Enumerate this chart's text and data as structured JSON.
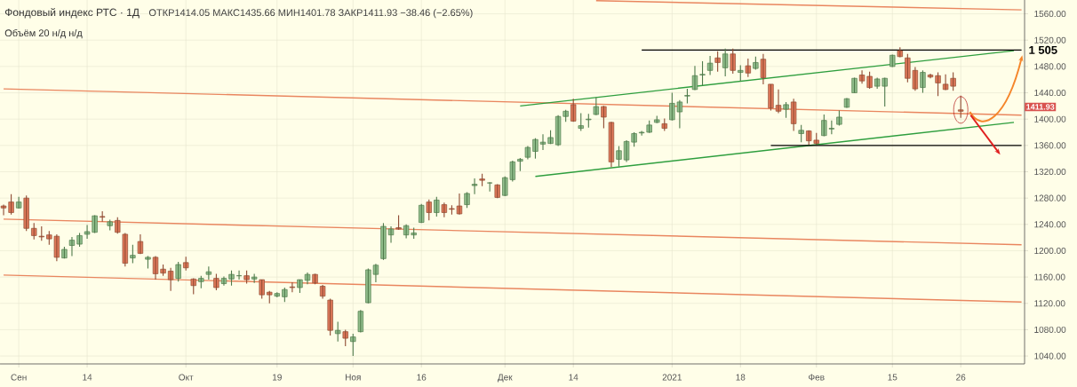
{
  "chart_data": {
    "type": "candlestick",
    "title": "Фондовый индекс РТС · 1Д",
    "subtitle": "Объём 20 н/д н/д",
    "annotations": [
      "ОТКР1414.05 МАКС1435.66 МИН1401.78 ЗАКР1411.93 −38.46 (−2.65%)",
      "1 505",
      "1411.93"
    ],
    "categories": [
      null,
      null,
      "Сен",
      null,
      null,
      null,
      null,
      null,
      null,
      null,
      null,
      "14",
      null,
      null,
      null,
      null,
      null,
      null,
      null,
      null,
      null,
      null,
      null,
      null,
      "Окт",
      null,
      null,
      null,
      null,
      null,
      null,
      null,
      null,
      null,
      null,
      null,
      "19",
      null,
      null,
      null,
      null,
      null,
      null,
      null,
      null,
      null,
      "Ноя",
      null,
      null,
      null,
      null,
      null,
      null,
      null,
      null,
      "16",
      null,
      null,
      null,
      null,
      null,
      null,
      null,
      null,
      null,
      null,
      "Дек",
      null,
      null,
      null,
      null,
      null,
      null,
      null,
      null,
      "14",
      null,
      null,
      null,
      null,
      null,
      null,
      null,
      null,
      null,
      null,
      null,
      null,
      "2021",
      null,
      null,
      null,
      null,
      null,
      null,
      null,
      null,
      "18",
      null,
      null,
      null,
      null,
      null,
      null,
      null,
      null,
      null,
      "Фев",
      null,
      null,
      null,
      null,
      null,
      null,
      null,
      null,
      null,
      "15",
      null,
      null,
      null,
      null,
      null,
      null,
      null,
      null,
      "26",
      null,
      null,
      null,
      null,
      null,
      null,
      null,
      null
    ],
    "ohlc": [
      [
        1268,
        1270,
        1254,
        1265
      ],
      [
        1274,
        1286,
        1255,
        1258
      ],
      [
        1265,
        1282,
        1264,
        1274
      ],
      [
        1280,
        1284,
        1230,
        1234
      ],
      [
        1234,
        1242,
        1217,
        1223
      ],
      [
        1222,
        1237,
        1215,
        1221
      ],
      [
        1224,
        1230,
        1209,
        1218
      ],
      [
        1222,
        1225,
        1184,
        1190
      ],
      [
        1189,
        1206,
        1188,
        1202
      ],
      [
        1208,
        1221,
        1192,
        1216
      ],
      [
        1210,
        1227,
        1206,
        1223
      ],
      [
        1225,
        1239,
        1218,
        1229
      ],
      [
        1228,
        1254,
        1227,
        1253
      ],
      [
        1252,
        1260,
        1244,
        1251
      ],
      [
        1238,
        1247,
        1231,
        1244
      ],
      [
        1246,
        1251,
        1226,
        1228
      ],
      [
        1225,
        1227,
        1176,
        1181
      ],
      [
        1189,
        1209,
        1181,
        1193
      ],
      [
        1214,
        1225,
        1195,
        1196
      ],
      [
        1187,
        1192,
        1173,
        1190
      ],
      [
        1190,
        1192,
        1156,
        1165
      ],
      [
        1172,
        1179,
        1162,
        1166
      ],
      [
        1169,
        1174,
        1139,
        1156
      ],
      [
        1158,
        1183,
        1153,
        1179
      ],
      [
        1182,
        1191,
        1170,
        1174
      ],
      [
        1157,
        1158,
        1134,
        1147
      ],
      [
        1153,
        1162,
        1143,
        1158
      ],
      [
        1164,
        1176,
        1156,
        1168
      ],
      [
        1158,
        1165,
        1140,
        1144
      ],
      [
        1150,
        1161,
        1147,
        1158
      ],
      [
        1157,
        1170,
        1147,
        1164
      ],
      [
        1162,
        1170,
        1156,
        1162
      ],
      [
        1162,
        1170,
        1150,
        1156
      ],
      [
        1157,
        1165,
        1151,
        1160
      ],
      [
        1156,
        1156,
        1127,
        1133
      ],
      [
        1137,
        1139,
        1120,
        1133
      ],
      [
        1131,
        1137,
        1129,
        1135
      ],
      [
        1130,
        1144,
        1122,
        1141
      ],
      [
        1145,
        1152,
        1137,
        1144
      ],
      [
        1144,
        1156,
        1136,
        1156
      ],
      [
        1155,
        1167,
        1149,
        1164
      ],
      [
        1164,
        1165,
        1149,
        1151
      ],
      [
        1146,
        1148,
        1127,
        1131
      ],
      [
        1125,
        1127,
        1071,
        1079
      ],
      [
        1074,
        1092,
        1062,
        1079
      ],
      [
        1077,
        1080,
        1055,
        1067
      ],
      [
        1062,
        1074,
        1040,
        1069
      ],
      [
        1077,
        1110,
        1076,
        1108
      ],
      [
        1121,
        1173,
        1120,
        1171
      ],
      [
        1164,
        1180,
        1152,
        1178
      ],
      [
        1188,
        1242,
        1186,
        1237
      ],
      [
        1224,
        1237,
        1212,
        1233
      ],
      [
        1235,
        1254,
        1232,
        1233
      ],
      [
        1224,
        1240,
        1219,
        1238
      ],
      [
        1224,
        1235,
        1218,
        1227
      ],
      [
        1243,
        1271,
        1242,
        1269
      ],
      [
        1274,
        1278,
        1246,
        1258
      ],
      [
        1258,
        1282,
        1252,
        1277
      ],
      [
        1270,
        1273,
        1251,
        1258
      ],
      [
        1264,
        1269,
        1255,
        1263
      ],
      [
        1268,
        1287,
        1255,
        1256
      ],
      [
        1270,
        1289,
        1265,
        1287
      ],
      [
        1299,
        1310,
        1286,
        1301
      ],
      [
        1309,
        1317,
        1298,
        1307
      ],
      [
        1303,
        1304,
        1290,
        1303
      ],
      [
        1300,
        1301,
        1280,
        1281
      ],
      [
        1284,
        1313,
        1283,
        1311
      ],
      [
        1308,
        1337,
        1305,
        1335
      ],
      [
        1336,
        1341,
        1321,
        1339
      ],
      [
        1342,
        1359,
        1339,
        1357
      ],
      [
        1351,
        1371,
        1340,
        1369
      ],
      [
        1362,
        1377,
        1353,
        1365
      ],
      [
        1363,
        1383,
        1362,
        1372
      ],
      [
        1361,
        1406,
        1359,
        1404
      ],
      [
        1404,
        1414,
        1396,
        1412
      ],
      [
        1422,
        1431,
        1396,
        1397
      ],
      [
        1386,
        1409,
        1382,
        1390
      ],
      [
        1399,
        1408,
        1387,
        1400
      ],
      [
        1407,
        1433,
        1406,
        1419
      ],
      [
        1419,
        1420,
        1386,
        1403
      ],
      [
        1395,
        1396,
        1327,
        1335
      ],
      [
        1339,
        1359,
        1328,
        1352
      ],
      [
        1338,
        1368,
        1335,
        1366
      ],
      [
        1365,
        1380,
        1358,
        1378
      ],
      [
        1379,
        1382,
        1375,
        1380
      ],
      [
        1380,
        1398,
        1379,
        1391
      ],
      [
        1395,
        1405,
        1394,
        1399
      ],
      [
        1393,
        1401,
        1382,
        1386
      ],
      [
        1399,
        1440,
        1398,
        1424
      ],
      [
        1411,
        1429,
        1386,
        1426
      ],
      [
        1435,
        1446,
        1424,
        1436
      ],
      [
        1445,
        1481,
        1444,
        1466
      ],
      [
        1467,
        1488,
        1451,
        1468
      ],
      [
        1474,
        1496,
        1467,
        1485
      ],
      [
        1493,
        1503,
        1472,
        1486
      ],
      [
        1478,
        1507,
        1465,
        1499
      ],
      [
        1499,
        1507,
        1469,
        1474
      ],
      [
        1471,
        1482,
        1458,
        1474
      ],
      [
        1481,
        1492,
        1464,
        1470
      ],
      [
        1477,
        1495,
        1475,
        1486
      ],
      [
        1491,
        1499,
        1453,
        1463
      ],
      [
        1453,
        1453,
        1413,
        1417
      ],
      [
        1421,
        1445,
        1409,
        1412
      ],
      [
        1415,
        1426,
        1402,
        1422
      ],
      [
        1426,
        1431,
        1382,
        1393
      ],
      [
        1378,
        1391,
        1365,
        1383
      ],
      [
        1382,
        1383,
        1361,
        1367
      ],
      [
        1368,
        1379,
        1361,
        1363
      ],
      [
        1375,
        1407,
        1374,
        1398
      ],
      [
        1385,
        1398,
        1377,
        1386
      ],
      [
        1392,
        1413,
        1390,
        1403
      ],
      [
        1418,
        1432,
        1417,
        1431
      ],
      [
        1440,
        1463,
        1440,
        1462
      ],
      [
        1467,
        1474,
        1454,
        1458
      ],
      [
        1465,
        1472,
        1446,
        1448
      ],
      [
        1450,
        1463,
        1446,
        1461
      ],
      [
        1450,
        1463,
        1419,
        1462
      ],
      [
        1480,
        1498,
        1479,
        1497
      ],
      [
        1504,
        1509,
        1494,
        1495
      ],
      [
        1493,
        1499,
        1456,
        1462
      ],
      [
        1474,
        1479,
        1443,
        1446
      ],
      [
        1448,
        1474,
        1440,
        1471
      ],
      [
        1467,
        1469,
        1462,
        1464
      ],
      [
        1466,
        1471,
        1435,
        1455
      ],
      [
        1453,
        1468,
        1444,
        1445
      ],
      [
        1462,
        1471,
        1443,
        1450
      ],
      [
        1414.05,
        1435.66,
        1401.78,
        1411.93
      ],
      null,
      null,
      null,
      null,
      null,
      null,
      null,
      null
    ],
    "series": [
      {
        "type": "line",
        "color": "#E9865F",
        "values": [
          null,
          null,
          null,
          null,
          null,
          null,
          null,
          null,
          null,
          null,
          null,
          null,
          null,
          null,
          null,
          null,
          null,
          null,
          null,
          null,
          null,
          null,
          null,
          null,
          null,
          null,
          null,
          null,
          null,
          null,
          null,
          null,
          null,
          null,
          null,
          null,
          null,
          null,
          null,
          null,
          null,
          null,
          null,
          null,
          null,
          null,
          null,
          null,
          null,
          null,
          null,
          null,
          null,
          null,
          null,
          null,
          null,
          null,
          null,
          null,
          null,
          null,
          null,
          null,
          null,
          null,
          null,
          null,
          null,
          null,
          null,
          null,
          null,
          null,
          null,
          null,
          null,
          null,
          1580,
          null,
          null,
          null,
          null,
          null,
          null,
          null,
          null,
          null,
          null,
          null,
          null,
          null,
          null,
          null,
          null,
          null,
          null,
          null,
          null,
          null,
          null,
          null,
          null,
          null,
          null,
          null,
          null,
          null,
          null,
          null,
          null,
          null,
          null,
          null,
          null,
          null,
          null,
          null,
          null,
          null,
          null,
          null,
          null,
          null,
          null,
          null,
          null,
          null,
          null,
          null,
          null,
          null,
          null,
          null,
          1566
        ]
      },
      {
        "type": "line",
        "color": "#E9865F",
        "values": [
          1446,
          null,
          null,
          null,
          null,
          null,
          null,
          null,
          null,
          null,
          null,
          null,
          null,
          null,
          null,
          null,
          null,
          null,
          null,
          null,
          null,
          null,
          null,
          null,
          null,
          null,
          null,
          null,
          null,
          null,
          null,
          null,
          null,
          null,
          null,
          null,
          null,
          null,
          null,
          null,
          null,
          null,
          null,
          null,
          null,
          null,
          null,
          null,
          null,
          null,
          null,
          null,
          null,
          null,
          null,
          null,
          null,
          null,
          null,
          null,
          null,
          null,
          null,
          null,
          null,
          null,
          null,
          null,
          null,
          null,
          null,
          null,
          null,
          null,
          null,
          null,
          null,
          null,
          null,
          null,
          null,
          null,
          null,
          null,
          null,
          null,
          null,
          null,
          null,
          null,
          null,
          null,
          null,
          null,
          null,
          null,
          null,
          null,
          null,
          null,
          null,
          null,
          null,
          null,
          null,
          null,
          null,
          null,
          null,
          null,
          null,
          null,
          null,
          null,
          null,
          null,
          null,
          null,
          null,
          null,
          null,
          null,
          null,
          null,
          null,
          null,
          null,
          null,
          null,
          null,
          null,
          null,
          null,
          null,
          1406
        ]
      },
      {
        "type": "line",
        "color": "#E9865F",
        "values": [
          1248,
          null,
          null,
          null,
          null,
          null,
          null,
          null,
          null,
          null,
          null,
          null,
          null,
          null,
          null,
          null,
          null,
          null,
          null,
          null,
          null,
          null,
          null,
          null,
          null,
          null,
          null,
          null,
          null,
          null,
          null,
          null,
          null,
          null,
          null,
          null,
          null,
          null,
          null,
          null,
          null,
          null,
          null,
          null,
          null,
          null,
          null,
          null,
          null,
          null,
          null,
          null,
          null,
          null,
          null,
          null,
          null,
          null,
          null,
          null,
          null,
          null,
          null,
          null,
          null,
          null,
          null,
          null,
          null,
          null,
          null,
          null,
          null,
          null,
          null,
          null,
          null,
          null,
          null,
          null,
          null,
          null,
          null,
          null,
          null,
          null,
          null,
          null,
          null,
          null,
          null,
          null,
          null,
          null,
          null,
          null,
          null,
          null,
          null,
          null,
          null,
          null,
          null,
          null,
          null,
          null,
          null,
          null,
          null,
          null,
          null,
          null,
          null,
          null,
          null,
          null,
          null,
          null,
          null,
          null,
          null,
          null,
          null,
          null,
          null,
          null,
          null,
          null,
          null,
          null,
          null,
          null,
          null,
          null,
          1209
        ]
      },
      {
        "type": "line",
        "color": "#E9865F",
        "values": [
          1163,
          null,
          null,
          null,
          null,
          null,
          null,
          null,
          null,
          null,
          null,
          null,
          null,
          null,
          null,
          null,
          null,
          null,
          null,
          null,
          null,
          null,
          null,
          null,
          null,
          null,
          null,
          null,
          null,
          null,
          null,
          null,
          null,
          null,
          null,
          null,
          null,
          null,
          null,
          null,
          null,
          null,
          null,
          null,
          null,
          null,
          null,
          null,
          null,
          null,
          null,
          null,
          null,
          null,
          null,
          null,
          null,
          null,
          null,
          null,
          null,
          null,
          null,
          null,
          null,
          null,
          null,
          null,
          null,
          null,
          null,
          null,
          null,
          null,
          null,
          null,
          null,
          null,
          null,
          null,
          null,
          null,
          null,
          null,
          null,
          null,
          null,
          null,
          null,
          null,
          null,
          null,
          null,
          null,
          null,
          null,
          null,
          null,
          null,
          null,
          null,
          null,
          null,
          null,
          null,
          null,
          null,
          null,
          null,
          null,
          null,
          null,
          null,
          null,
          null,
          null,
          null,
          null,
          null,
          null,
          null,
          null,
          null,
          null,
          null,
          null,
          null,
          null,
          null,
          null,
          null,
          null,
          null,
          null,
          1122
        ]
      },
      {
        "type": "line",
        "color": "#2E9E3E",
        "values": [
          null,
          null,
          null,
          null,
          null,
          null,
          null,
          null,
          null,
          null,
          null,
          null,
          null,
          null,
          null,
          null,
          null,
          null,
          null,
          null,
          null,
          null,
          null,
          null,
          null,
          null,
          null,
          null,
          null,
          null,
          null,
          null,
          null,
          null,
          null,
          null,
          null,
          null,
          null,
          null,
          null,
          null,
          null,
          null,
          null,
          null,
          null,
          null,
          null,
          null,
          null,
          null,
          null,
          null,
          null,
          null,
          null,
          null,
          null,
          null,
          null,
          null,
          null,
          null,
          null,
          null,
          null,
          null,
          1420,
          null,
          null,
          null,
          null,
          null,
          null,
          null,
          null,
          null,
          null,
          null,
          null,
          null,
          null,
          null,
          null,
          null,
          null,
          null,
          null,
          null,
          null,
          null,
          null,
          null,
          null,
          null,
          null,
          null,
          null,
          null,
          null,
          null,
          null,
          null,
          null,
          null,
          null,
          null,
          null,
          null,
          null,
          null,
          null,
          null,
          null,
          null,
          null,
          null,
          null,
          null,
          null,
          null,
          null,
          null,
          null,
          null,
          null,
          null,
          null,
          null,
          null,
          null,
          null,
          1504,
          null
        ]
      },
      {
        "type": "line",
        "color": "#2E9E3E",
        "values": [
          null,
          null,
          null,
          null,
          null,
          null,
          null,
          null,
          null,
          null,
          null,
          null,
          null,
          null,
          null,
          null,
          null,
          null,
          null,
          null,
          null,
          null,
          null,
          null,
          null,
          null,
          null,
          null,
          null,
          null,
          null,
          null,
          null,
          null,
          null,
          null,
          null,
          null,
          null,
          null,
          null,
          null,
          null,
          null,
          null,
          null,
          null,
          null,
          null,
          null,
          null,
          null,
          null,
          null,
          null,
          null,
          null,
          null,
          null,
          null,
          null,
          null,
          null,
          null,
          null,
          null,
          null,
          null,
          null,
          null,
          1313,
          null,
          null,
          null,
          null,
          null,
          null,
          null,
          null,
          null,
          null,
          null,
          null,
          null,
          null,
          null,
          null,
          null,
          null,
          null,
          null,
          null,
          null,
          null,
          null,
          null,
          null,
          null,
          null,
          null,
          null,
          null,
          null,
          null,
          null,
          null,
          null,
          null,
          null,
          null,
          null,
          null,
          null,
          null,
          null,
          null,
          null,
          null,
          null,
          null,
          null,
          null,
          null,
          null,
          null,
          null,
          null,
          null,
          null,
          null,
          null,
          null,
          null,
          1395,
          null
        ]
      },
      {
        "type": "line",
        "color": "#000000",
        "values": [
          null,
          null,
          null,
          null,
          null,
          null,
          null,
          null,
          null,
          null,
          null,
          null,
          null,
          null,
          null,
          null,
          null,
          null,
          null,
          null,
          null,
          null,
          null,
          null,
          null,
          null,
          null,
          null,
          null,
          null,
          null,
          null,
          null,
          null,
          null,
          null,
          null,
          null,
          null,
          null,
          null,
          null,
          null,
          null,
          null,
          null,
          null,
          null,
          null,
          null,
          null,
          null,
          null,
          null,
          null,
          null,
          null,
          null,
          null,
          null,
          null,
          null,
          null,
          null,
          null,
          null,
          null,
          null,
          null,
          null,
          null,
          null,
          null,
          null,
          null,
          null,
          null,
          null,
          null,
          null,
          null,
          null,
          null,
          null,
          1505,
          null,
          null,
          null,
          null,
          null,
          null,
          null,
          null,
          null,
          null,
          null,
          null,
          null,
          null,
          null,
          null,
          null,
          null,
          null,
          null,
          null,
          null,
          null,
          null,
          null,
          null,
          null,
          null,
          null,
          null,
          null,
          null,
          null,
          null,
          null,
          null,
          null,
          null,
          null,
          null,
          null,
          null,
          null,
          null,
          null,
          null,
          null,
          null,
          null,
          1505
        ]
      },
      {
        "type": "line",
        "color": "#000000",
        "values": [
          null,
          null,
          null,
          null,
          null,
          null,
          null,
          null,
          null,
          null,
          null,
          null,
          null,
          null,
          null,
          null,
          null,
          null,
          null,
          null,
          null,
          null,
          null,
          null,
          null,
          null,
          null,
          null,
          null,
          null,
          null,
          null,
          null,
          null,
          null,
          null,
          null,
          null,
          null,
          null,
          null,
          null,
          null,
          null,
          null,
          null,
          null,
          null,
          null,
          null,
          null,
          null,
          null,
          null,
          null,
          null,
          null,
          null,
          null,
          null,
          null,
          null,
          null,
          null,
          null,
          null,
          null,
          null,
          null,
          null,
          null,
          null,
          null,
          null,
          null,
          null,
          null,
          null,
          null,
          null,
          null,
          null,
          null,
          null,
          null,
          null,
          null,
          null,
          null,
          null,
          null,
          null,
          null,
          null,
          null,
          null,
          null,
          null,
          null,
          null,
          null,
          1360,
          null,
          null,
          null,
          null,
          null,
          null,
          null,
          null,
          null,
          null,
          null,
          null,
          null,
          null,
          null,
          null,
          null,
          null,
          null,
          null,
          null,
          null,
          null,
          null,
          null,
          null,
          null,
          null,
          null,
          null,
          null,
          null,
          1360
        ]
      }
    ],
    "ylim": [
      1028,
      1581
    ],
    "yticks": [
      {
        "value": 1040,
        "label": "1040.00"
      },
      {
        "value": 1080,
        "label": "1080.00"
      },
      {
        "value": 1120,
        "label": "1120.00"
      },
      {
        "value": 1160,
        "label": "1160.00"
      },
      {
        "value": 1200,
        "label": "1200.00"
      },
      {
        "value": 1240,
        "label": "1240.00"
      },
      {
        "value": 1280,
        "label": "1280.00"
      },
      {
        "value": 1320,
        "label": "1320.00"
      },
      {
        "value": 1360,
        "label": "1360.00"
      },
      {
        "value": 1400,
        "label": "1400.00"
      },
      {
        "value": 1440,
        "label": "1440.00"
      },
      {
        "value": 1480,
        "label": "1480.00"
      },
      {
        "value": 1520,
        "label": "1520.00"
      },
      {
        "value": 1560,
        "label": "1560.00"
      }
    ],
    "grid": true
  }
}
